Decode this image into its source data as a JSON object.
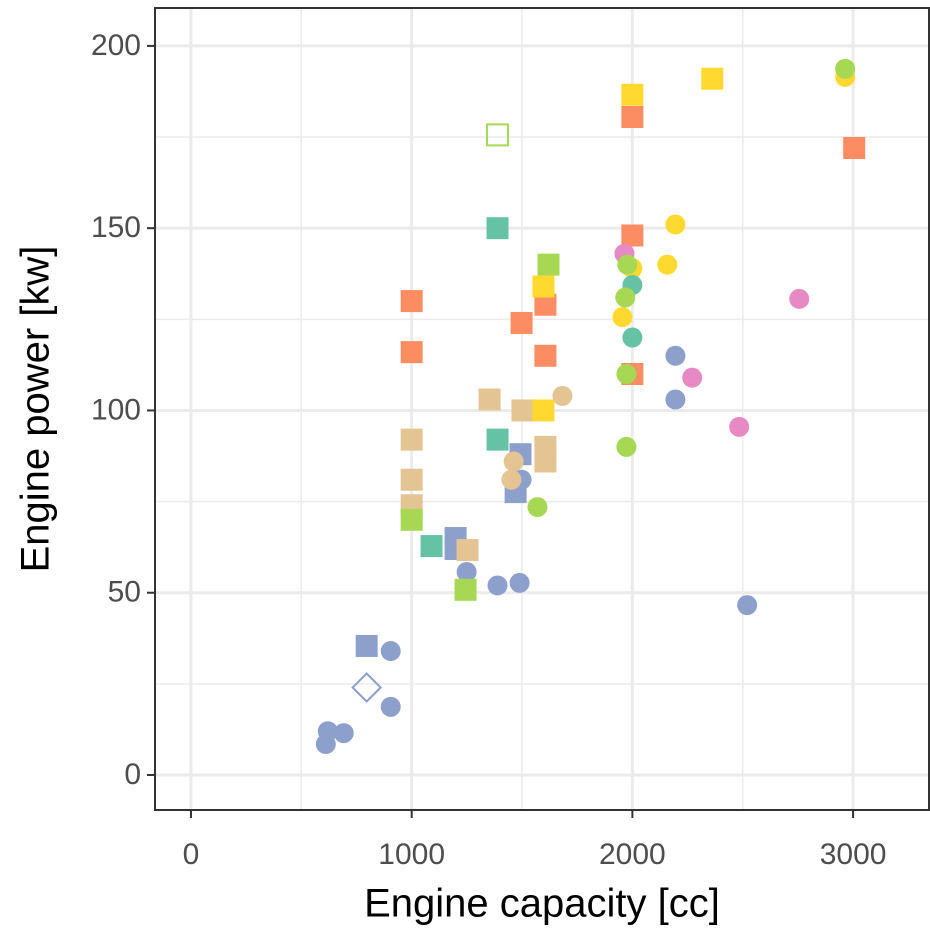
{
  "chart_data": {
    "type": "scatter",
    "xlabel": "Engine capacity [cc]",
    "ylabel": "Engine power [kw]",
    "xlim": [
      -163,
      3344
    ],
    "ylim": [
      -9.6,
      210.4
    ],
    "xticks": [
      0,
      1000,
      2000,
      3000
    ],
    "yticks": [
      0,
      50,
      100,
      150,
      200
    ],
    "grid": true,
    "series": [
      {
        "color": "#8da0cb",
        "shape": "circle",
        "x": [
          611,
          620,
          692,
          905,
          905,
          1249,
          1389,
          1489,
          1498,
          2520,
          2195,
          2195
        ],
        "values": [
          8.5,
          12,
          11.5,
          34,
          18.7,
          55.7,
          52,
          52.7,
          81,
          46.6,
          115,
          103
        ]
      },
      {
        "color": "#8da0cb",
        "shape": "square",
        "x": [
          796,
          1199,
          1199,
          1493,
          1471
        ],
        "values": [
          35.4,
          65,
          62,
          88,
          77.6
        ]
      },
      {
        "color": "#8da0cb",
        "shape": "open-diamond",
        "x": [
          796
        ],
        "values": [
          24
        ]
      },
      {
        "color": "#fc8d62",
        "shape": "square",
        "x": [
          1000,
          1000,
          1498,
          1606,
          1606,
          2000,
          2000,
          3005,
          2000
        ],
        "values": [
          130,
          116,
          124,
          129,
          115,
          180.5,
          148,
          172,
          110
        ]
      },
      {
        "color": "#e5c494",
        "shape": "square",
        "x": [
          1000,
          1000,
          1000,
          1353,
          1502,
          1606,
          1606,
          1253
        ],
        "values": [
          92,
          81,
          74,
          103,
          100,
          90,
          86,
          61.7
        ]
      },
      {
        "color": "#e5c494",
        "shape": "circle",
        "x": [
          1683,
          1462,
          1606,
          1452
        ],
        "values": [
          104,
          86,
          86,
          81
        ]
      },
      {
        "color": "#a6d854",
        "shape": "square",
        "x": [
          1000,
          1244,
          1620
        ],
        "values": [
          70,
          50.8,
          140
        ]
      },
      {
        "color": "#a6d854",
        "shape": "open-square",
        "x": [
          1389
        ],
        "values": [
          175.6
        ]
      },
      {
        "color": "#ffd92f",
        "shape": "square",
        "x": [
          2000,
          2362,
          1597,
          1597
        ],
        "values": [
          186.6,
          191,
          134,
          100
        ]
      },
      {
        "color": "#ffd92f",
        "shape": "circle",
        "x": [
          2964,
          2195,
          2158,
          1955,
          2000
        ],
        "values": [
          191.5,
          151,
          140,
          125.6,
          139
        ]
      },
      {
        "color": "#66c2a5",
        "shape": "square",
        "x": [
          1389,
          1389,
          1090
        ],
        "values": [
          150,
          92,
          62.8
        ]
      },
      {
        "color": "#66c2a5",
        "shape": "circle",
        "x": [
          2000,
          2000
        ],
        "values": [
          134.4,
          120
        ]
      },
      {
        "color": "#e78ac3",
        "shape": "circle",
        "x": [
          1964,
          2756,
          2271,
          2484
        ],
        "values": [
          143,
          130.6,
          109,
          95.5
        ]
      },
      {
        "color": "#a6d854",
        "shape": "circle",
        "x": [
          2964,
          1977,
          1968,
          1973,
          1973,
          1570
        ],
        "values": [
          193.7,
          140,
          131,
          110,
          90,
          73.5
        ]
      }
    ]
  }
}
